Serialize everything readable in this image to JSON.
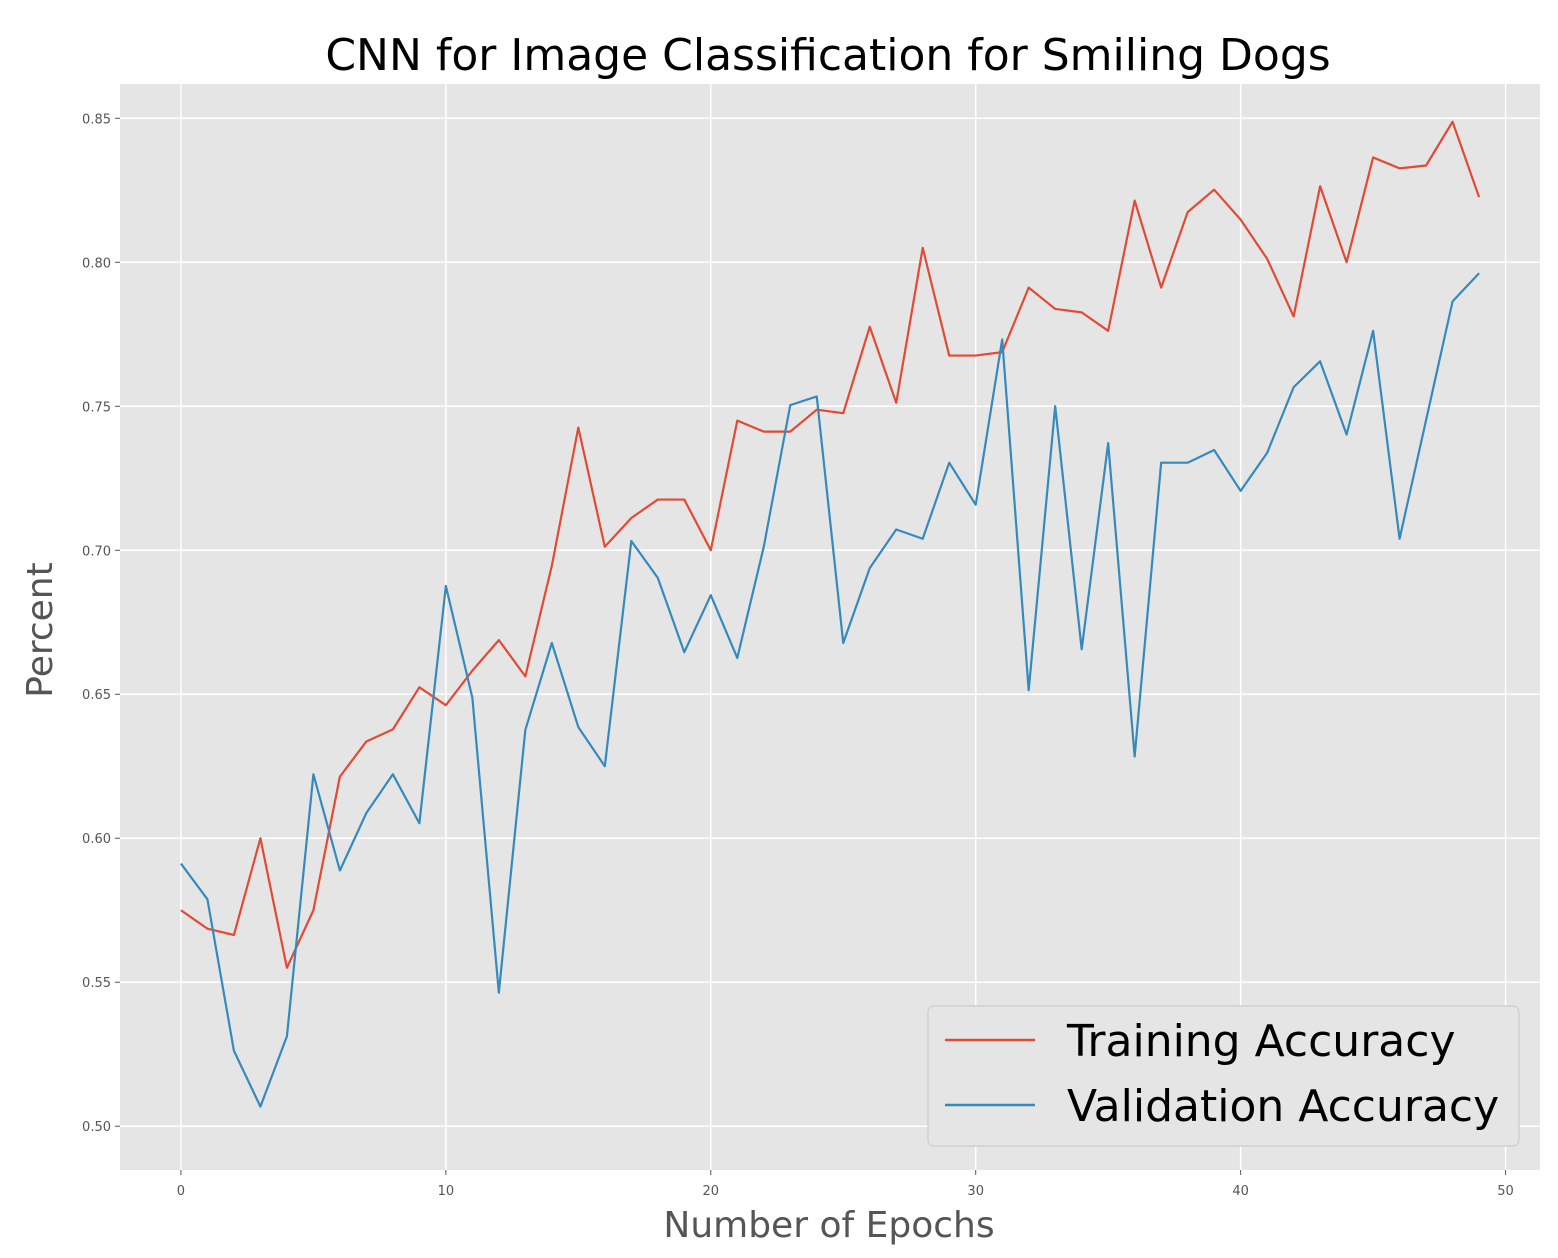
{
  "chart_data": {
    "type": "line",
    "title": "CNN for Image Classification for Smiling Dogs",
    "xlabel": "Number of Epochs",
    "ylabel": "Percent",
    "xlim": [
      -2.3,
      51.3
    ],
    "ylim": [
      0.4848,
      0.8619
    ],
    "xticks": [
      0,
      10,
      20,
      30,
      40,
      50
    ],
    "yticks": [
      0.5,
      0.55,
      0.6,
      0.65,
      0.7,
      0.75,
      0.8,
      0.85
    ],
    "xtick_labels": [
      "0",
      "10",
      "20",
      "30",
      "40",
      "50"
    ],
    "ytick_labels": [
      "0.50",
      "0.55",
      "0.60",
      "0.65",
      "0.70",
      "0.75",
      "0.80",
      "0.85"
    ],
    "grid": true,
    "legend_position": "lower right",
    "background_color": "#e5e5e5",
    "grid_color": "#ffffff",
    "x": [
      0,
      1,
      2,
      3,
      4,
      5,
      6,
      7,
      8,
      9,
      10,
      11,
      12,
      13,
      14,
      15,
      16,
      17,
      18,
      19,
      20,
      21,
      22,
      23,
      24,
      25,
      26,
      27,
      28,
      29,
      30,
      31,
      32,
      33,
      34,
      35,
      36,
      37,
      38,
      39,
      40,
      41,
      42,
      43,
      44,
      45,
      46,
      47,
      48,
      49
    ],
    "series": [
      {
        "name": "Training Accuracy",
        "color": "#e24a33",
        "values": [
          0.575,
          0.5686,
          0.5664,
          0.6,
          0.555,
          0.575,
          0.6214,
          0.6336,
          0.6378,
          0.6524,
          0.6462,
          0.6582,
          0.6688,
          0.6562,
          0.6946,
          0.7426,
          0.7012,
          0.7112,
          0.7176,
          0.7176,
          0.7,
          0.745,
          0.7412,
          0.7412,
          0.7488,
          0.7476,
          0.7776,
          0.7512,
          0.805,
          0.7676,
          0.7676,
          0.7688,
          0.7912,
          0.7838,
          0.7826,
          0.7762,
          0.8214,
          0.7912,
          0.8174,
          0.8252,
          0.8148,
          0.8012,
          0.7812,
          0.8264,
          0.8,
          0.8364,
          0.8326,
          0.8336,
          0.8488,
          0.8226
        ]
      },
      {
        "name": "Validation Accuracy",
        "color": "#348abd",
        "values": [
          0.5912,
          0.5788,
          0.5262,
          0.5068,
          0.5312,
          0.6222,
          0.5888,
          0.6088,
          0.6222,
          0.6052,
          0.6876,
          0.6488,
          0.5464,
          0.6376,
          0.6678,
          0.6386,
          0.625,
          0.7032,
          0.6904,
          0.6646,
          0.6844,
          0.6626,
          0.7012,
          0.7504,
          0.7534,
          0.6678,
          0.6938,
          0.7072,
          0.704,
          0.7304,
          0.7158,
          0.7732,
          0.6514,
          0.75,
          0.6656,
          0.7372,
          0.6284,
          0.7304,
          0.7304,
          0.7348,
          0.7206,
          0.7338,
          0.7566,
          0.7656,
          0.7402,
          0.7762,
          0.704,
          0.7452,
          0.7864,
          0.7962
        ]
      }
    ]
  }
}
